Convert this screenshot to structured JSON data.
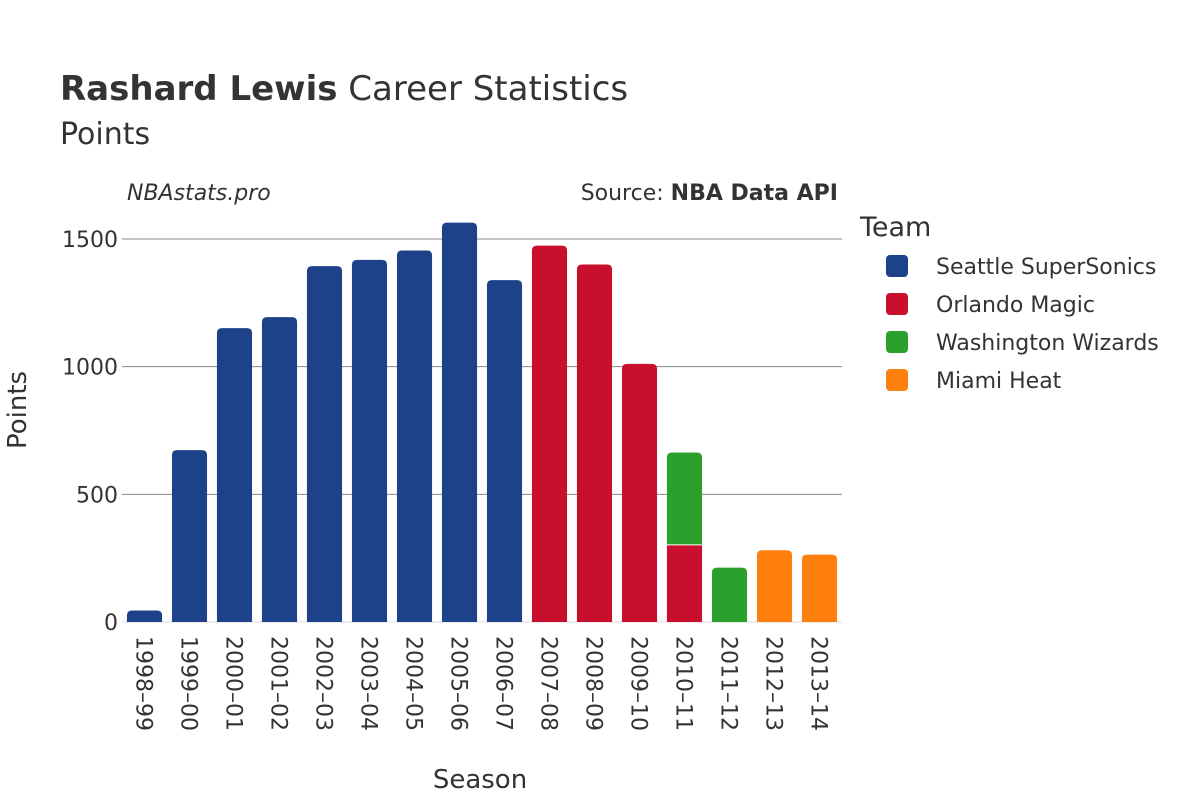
{
  "header": {
    "player_name": "Rashard Lewis",
    "title_rest": "Career Statistics",
    "subtitle": "Points",
    "watermark": "NBAstats.pro",
    "source_prefix": "Source: ",
    "source_name": "NBA Data API"
  },
  "chart_data": {
    "type": "bar",
    "stacked": true,
    "title": "Rashard Lewis Career Statistics",
    "subtitle": "Points",
    "xlabel": "Season",
    "ylabel": "Points",
    "ylim": [
      0,
      1600
    ],
    "yticks": [
      0,
      500,
      1000,
      1500
    ],
    "grid": true,
    "legend_title": "Team",
    "legend_position": "right",
    "categories": [
      "1998–99",
      "1999–00",
      "2000–01",
      "2001–02",
      "2002–03",
      "2003–04",
      "2004–05",
      "2005–06",
      "2006–07",
      "2007–08",
      "2008–09",
      "2009–10",
      "2010–11",
      "2011–12",
      "2012–13",
      "2013–14"
    ],
    "series": [
      {
        "name": "Seattle SuperSonics",
        "color": "#1d428a",
        "values": [
          45,
          673,
          1151,
          1194,
          1394,
          1418,
          1455,
          1564,
          1339,
          0,
          0,
          0,
          0,
          0,
          0,
          0
        ]
      },
      {
        "name": "Orlando Magic",
        "color": "#c8102e",
        "values": [
          0,
          0,
          0,
          0,
          0,
          0,
          0,
          0,
          0,
          1474,
          1400,
          1011,
          302,
          0,
          0,
          0
        ]
      },
      {
        "name": "Washington Wizards",
        "color": "#2ca02c",
        "values": [
          0,
          0,
          0,
          0,
          0,
          0,
          0,
          0,
          0,
          0,
          0,
          0,
          362,
          213,
          0,
          0
        ]
      },
      {
        "name": "Miami Heat",
        "color": "#ff7f0e",
        "values": [
          0,
          0,
          0,
          0,
          0,
          0,
          0,
          0,
          0,
          0,
          0,
          0,
          0,
          0,
          281,
          264
        ]
      }
    ]
  }
}
